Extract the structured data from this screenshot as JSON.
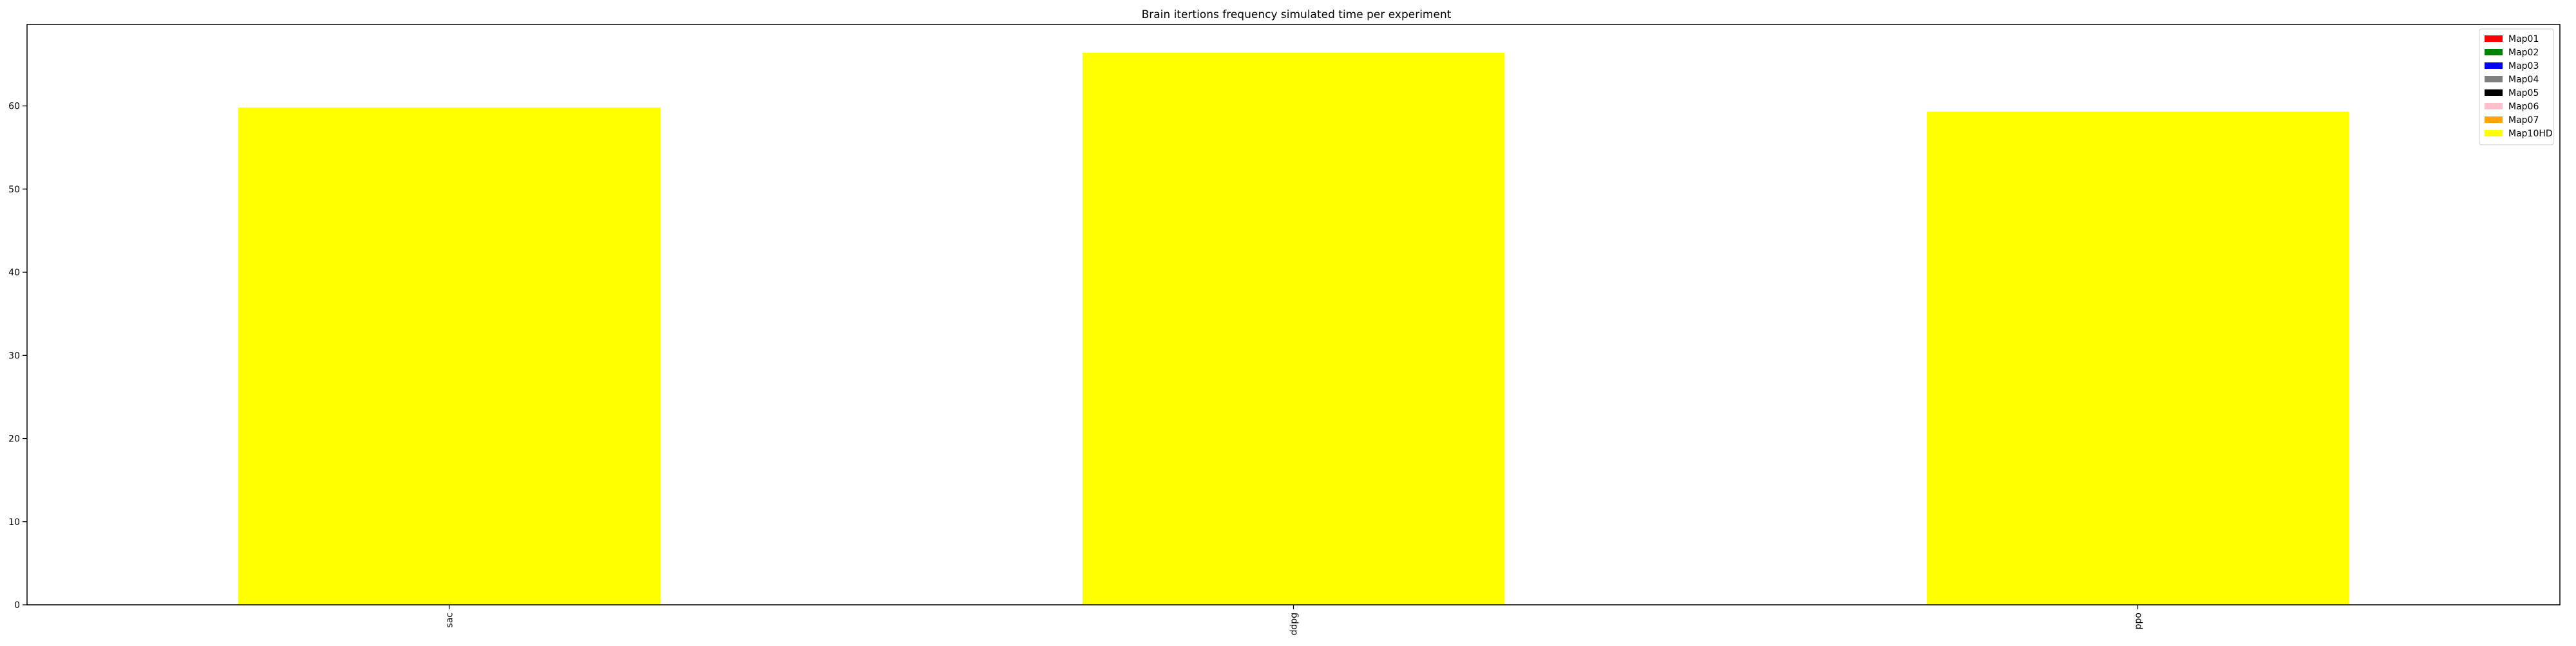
{
  "chart_data": {
    "type": "bar",
    "title": "Brain itertions frequency simulated time per experiment",
    "xlabel": "",
    "ylabel": "",
    "categories": [
      "sac",
      "ddpg",
      "ppo"
    ],
    "ylim": [
      0,
      69.8
    ],
    "yticks": [
      0,
      10,
      20,
      30,
      40,
      50,
      60
    ],
    "grid": false,
    "legend_position": "top-right",
    "series": [
      {
        "name": "Map01",
        "color": "#ff0000",
        "values": [
          0,
          0,
          0
        ]
      },
      {
        "name": "Map02",
        "color": "#008000",
        "values": [
          0,
          0,
          0
        ]
      },
      {
        "name": "Map03",
        "color": "#0000ff",
        "values": [
          0,
          0,
          0
        ]
      },
      {
        "name": "Map04",
        "color": "#808080",
        "values": [
          0,
          0,
          0
        ]
      },
      {
        "name": "Map05",
        "color": "#000000",
        "values": [
          0,
          0,
          0
        ]
      },
      {
        "name": "Map06",
        "color": "#ffc0cb",
        "values": [
          0,
          0,
          0
        ]
      },
      {
        "name": "Map07",
        "color": "#ffa500",
        "values": [
          0,
          0,
          0
        ]
      },
      {
        "name": "Map10HD",
        "color": "#ffff00",
        "values": [
          59.8,
          66.4,
          59.3
        ]
      }
    ]
  }
}
